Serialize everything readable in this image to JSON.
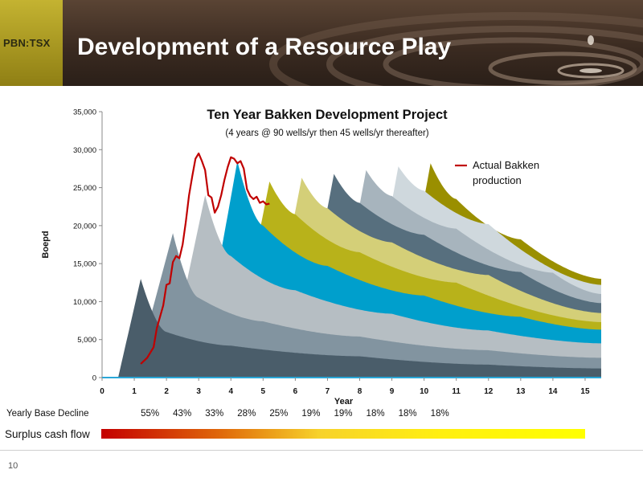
{
  "header": {
    "ticker": "PBN:TSX",
    "title": "Development of a Resource Play"
  },
  "page_number": "10",
  "colors": {
    "wave_palette": [
      "#4a5d6a",
      "#8294a0",
      "#b6bec3",
      "#009fcc",
      "#b8b21a",
      "#d4cf78",
      "#576f7e",
      "#a7b4bd",
      "#cfd8dd",
      "#9a8f00"
    ],
    "actual_line": "#c00000"
  },
  "chart_data": {
    "type": "area",
    "title": "Ten Year Bakken Development Project",
    "subtitle": "(4 years @ 90 wells/yr then 45 wells/yr thereafter)",
    "xlabel": "Year",
    "ylabel": "Boepd",
    "xlim": [
      0,
      15.5
    ],
    "ylim": [
      0,
      35000
    ],
    "x_ticks": [
      0,
      1,
      2,
      3,
      4,
      5,
      6,
      7,
      8,
      9,
      10,
      11,
      12,
      13,
      14,
      15
    ],
    "y_ticks": [
      0,
      5000,
      10000,
      15000,
      20000,
      25000,
      30000,
      35000
    ],
    "y_tick_labels": [
      "0",
      "5,000",
      "10,000",
      "15,000",
      "20,000",
      "25,000",
      "30,000",
      "35,000"
    ],
    "grid": false,
    "stacked_layers": [
      {
        "start": 0.5,
        "peak_x": 1.2,
        "boundary": [
          [
            0.5,
            0
          ],
          [
            1.2,
            13000
          ],
          [
            2.0,
            6000
          ],
          [
            4.0,
            4200
          ],
          [
            8.0,
            2800
          ],
          [
            12.0,
            1700
          ],
          [
            15.5,
            1200
          ]
        ]
      },
      {
        "start": 1.0,
        "peak_x": 2.2,
        "boundary": [
          [
            1.0,
            0
          ],
          [
            2.2,
            19000
          ],
          [
            3.0,
            10500
          ],
          [
            5.0,
            7400
          ],
          [
            8.0,
            5400
          ],
          [
            12.0,
            3600
          ],
          [
            15.5,
            2600
          ]
        ]
      },
      {
        "start": 2.0,
        "peak_x": 3.2,
        "boundary": [
          [
            2.0,
            0
          ],
          [
            3.2,
            24000
          ],
          [
            4.0,
            16000
          ],
          [
            6.0,
            11500
          ],
          [
            9.0,
            8400
          ],
          [
            12.0,
            6200
          ],
          [
            15.5,
            4500
          ]
        ]
      },
      {
        "start": 3.0,
        "peak_x": 4.2,
        "boundary": [
          [
            3.0,
            0
          ],
          [
            4.2,
            28500
          ],
          [
            5.0,
            20000
          ],
          [
            7.0,
            14700
          ],
          [
            10.0,
            10800
          ],
          [
            13.0,
            8000
          ],
          [
            15.5,
            6300
          ]
        ]
      },
      {
        "start": 4.0,
        "peak_x": 5.2,
        "boundary": [
          [
            4.0,
            0
          ],
          [
            5.2,
            25800
          ],
          [
            6.0,
            21500
          ],
          [
            8.0,
            16500
          ],
          [
            11.0,
            12500
          ],
          [
            15.5,
            7300
          ]
        ]
      },
      {
        "start": 5.0,
        "peak_x": 6.2,
        "boundary": [
          [
            5.0,
            0
          ],
          [
            6.2,
            26300
          ],
          [
            7.0,
            22300
          ],
          [
            9.0,
            17800
          ],
          [
            12.0,
            13500
          ],
          [
            15.5,
            8500
          ]
        ]
      },
      {
        "start": 6.0,
        "peak_x": 7.2,
        "boundary": [
          [
            6.0,
            0
          ],
          [
            7.2,
            26800
          ],
          [
            8.0,
            23000
          ],
          [
            10.0,
            18800
          ],
          [
            13.0,
            13900
          ],
          [
            15.5,
            9800
          ]
        ]
      },
      {
        "start": 7.0,
        "peak_x": 8.2,
        "boundary": [
          [
            7.0,
            0
          ],
          [
            8.2,
            27300
          ],
          [
            9.0,
            23900
          ],
          [
            11.0,
            19600
          ],
          [
            14.0,
            13800
          ],
          [
            15.5,
            11000
          ]
        ]
      },
      {
        "start": 8.0,
        "peak_x": 9.2,
        "boundary": [
          [
            8.0,
            0
          ],
          [
            9.2,
            27800
          ],
          [
            10.0,
            24600
          ],
          [
            12.0,
            20200
          ],
          [
            15.5,
            12200
          ]
        ]
      },
      {
        "start": 9.0,
        "peak_x": 10.2,
        "boundary": [
          [
            9.0,
            0
          ],
          [
            10.2,
            28200
          ],
          [
            11.0,
            23500
          ],
          [
            13.0,
            18200
          ],
          [
            15.5,
            13000
          ]
        ]
      }
    ],
    "series": [
      {
        "name": "Actual Bakken production",
        "legend_lines": [
          "Actual Bakken",
          "production"
        ],
        "x": [
          1.2,
          1.4,
          1.6,
          1.7,
          1.9,
          2.0,
          2.1,
          2.2,
          2.3,
          2.4,
          2.5,
          2.6,
          2.7,
          2.8,
          2.9,
          3.0,
          3.1,
          3.2,
          3.3,
          3.4,
          3.5,
          3.6,
          3.7,
          3.8,
          3.9,
          4.0,
          4.1,
          4.2,
          4.3,
          4.4,
          4.5,
          4.6,
          4.7,
          4.8,
          4.9,
          5.0,
          5.1,
          5.2
        ],
        "values": [
          1800,
          2600,
          4000,
          6500,
          9500,
          12200,
          12400,
          15200,
          16000,
          15700,
          17500,
          20500,
          24000,
          26500,
          28800,
          29500,
          28500,
          27300,
          24000,
          23700,
          21700,
          22500,
          24000,
          26000,
          27700,
          29000,
          28800,
          28200,
          28500,
          27500,
          24800,
          23900,
          23500,
          23800,
          23000,
          23200,
          22800,
          22900
        ]
      }
    ]
  },
  "yearly_base_decline": {
    "label": "Yearly Base Decline",
    "values": [
      {
        "year": 1.5,
        "text": "55%"
      },
      {
        "year": 2.5,
        "text": "43%"
      },
      {
        "year": 3.5,
        "text": "33%"
      },
      {
        "year": 4.5,
        "text": "28%"
      },
      {
        "year": 5.5,
        "text": "25%"
      },
      {
        "year": 6.5,
        "text": "19%"
      },
      {
        "year": 7.5,
        "text": "19%"
      },
      {
        "year": 8.5,
        "text": "18%"
      },
      {
        "year": 9.5,
        "text": "18%"
      },
      {
        "year": 10.5,
        "text": "18%"
      }
    ]
  },
  "surplus_cash_flow": {
    "label": "Surplus cash flow"
  }
}
